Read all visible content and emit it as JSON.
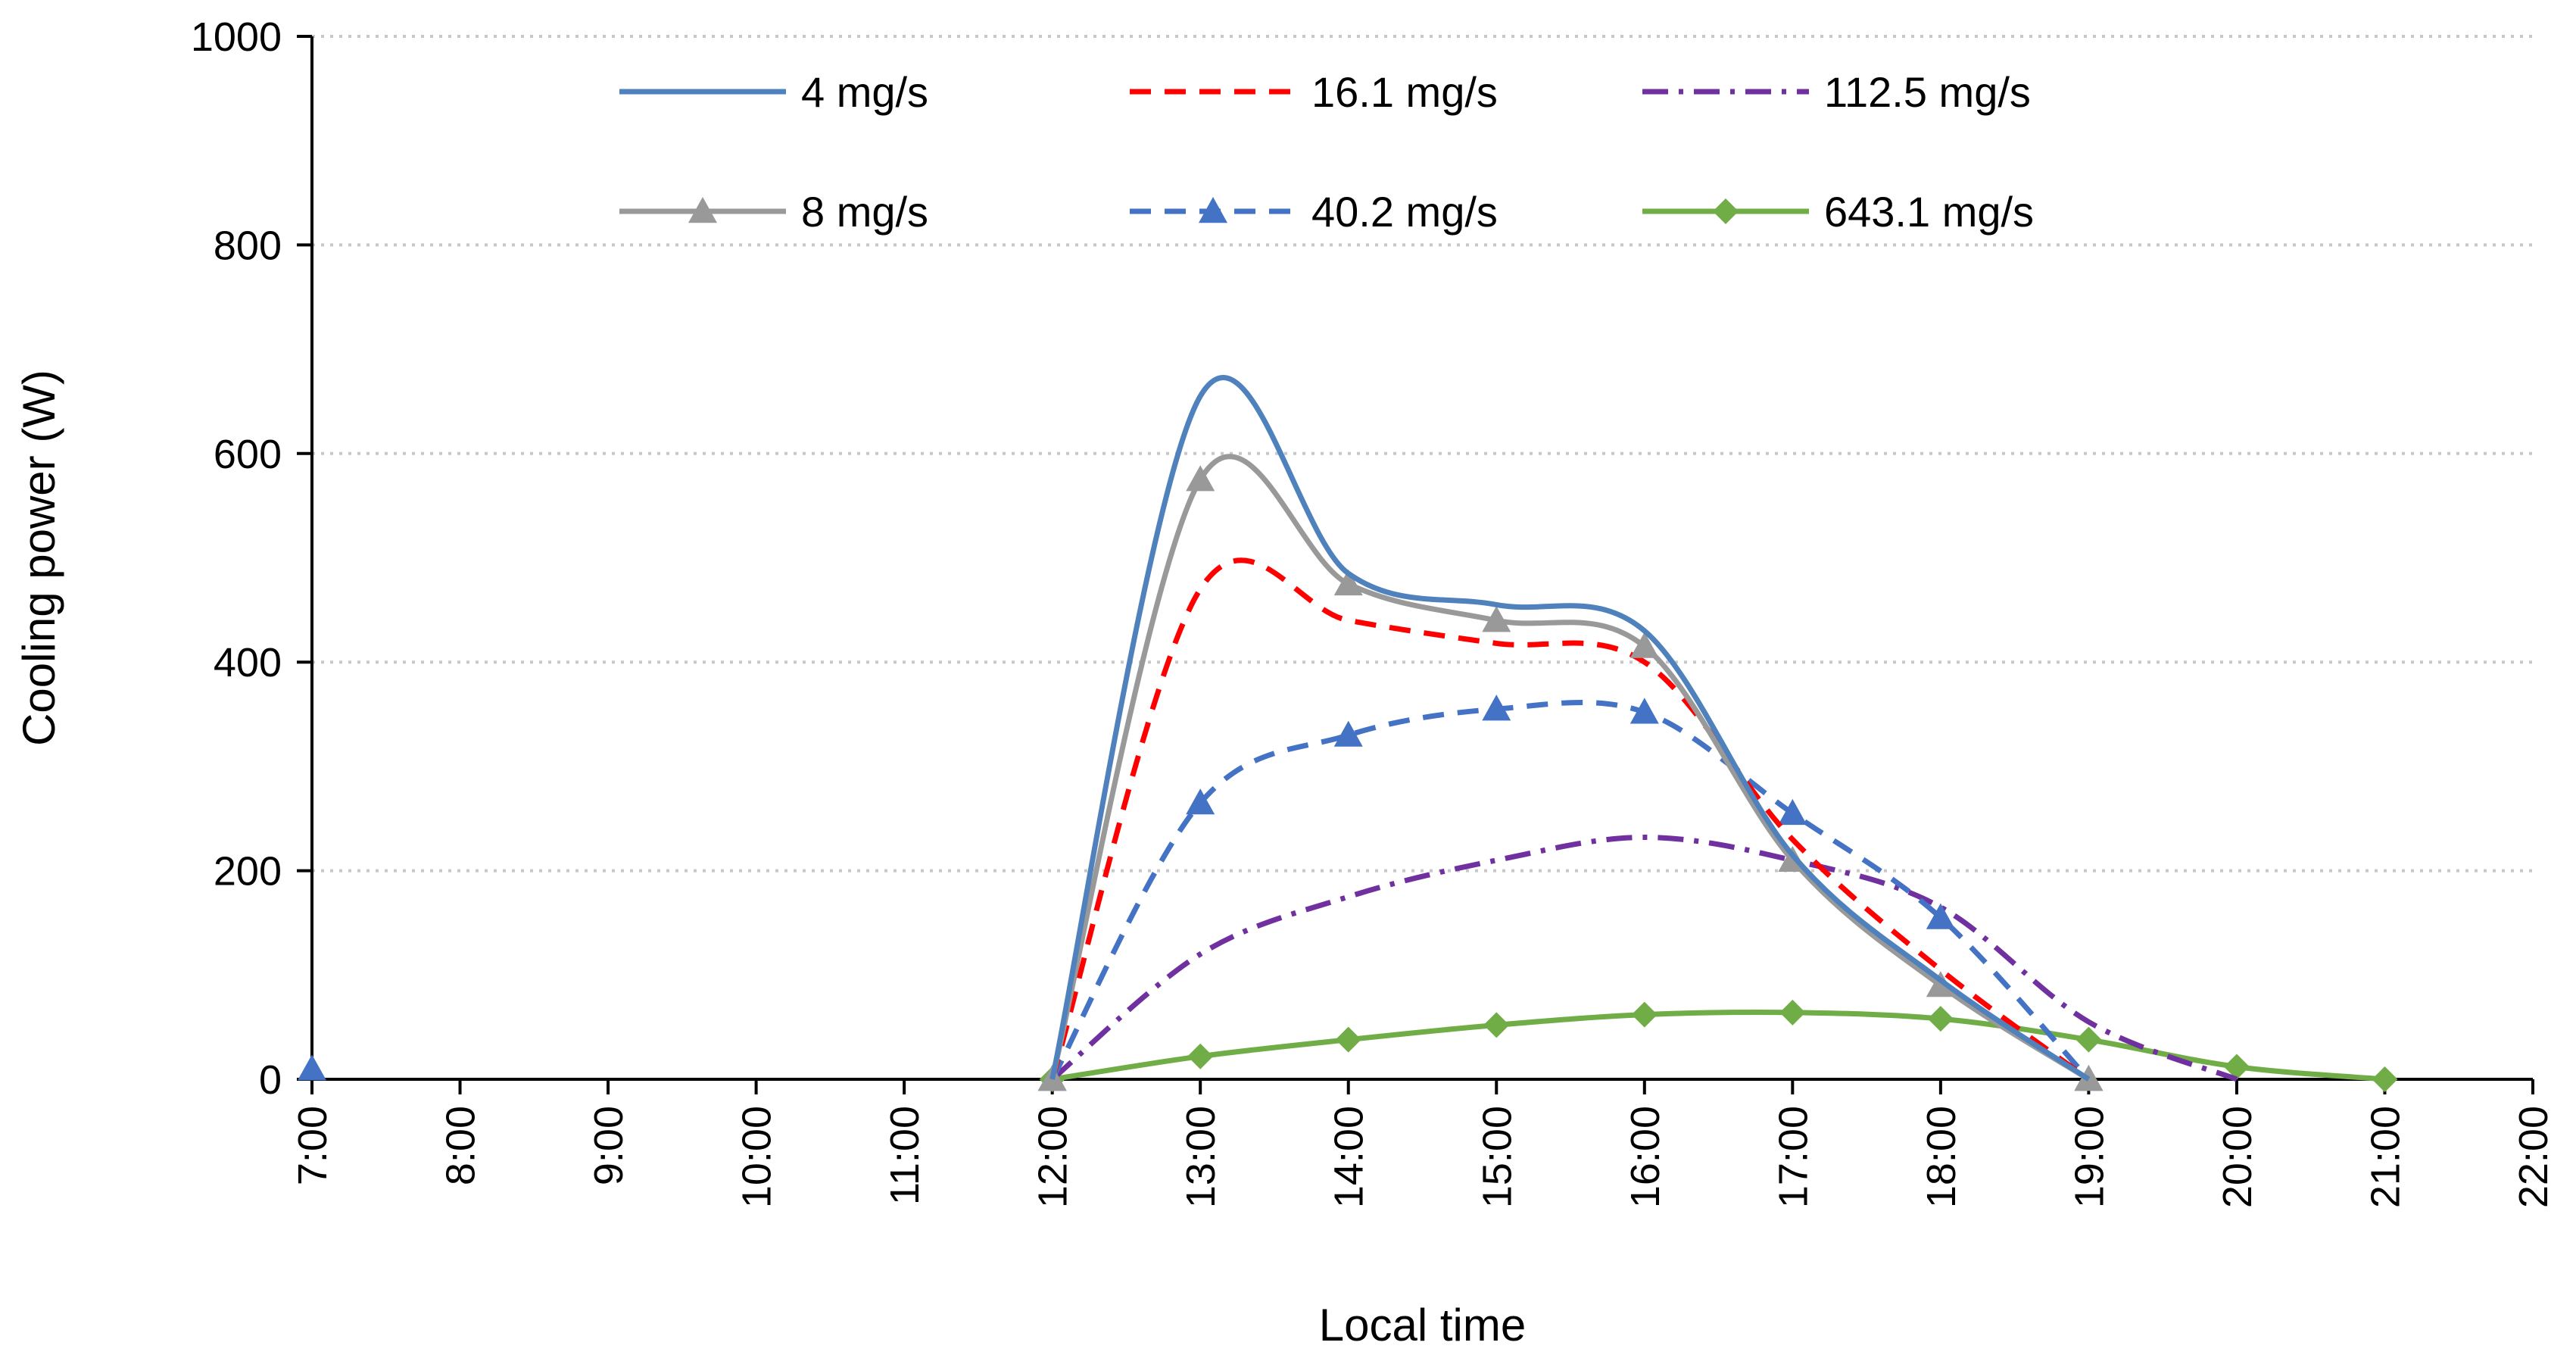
{
  "chart_data": {
    "type": "line",
    "title": "",
    "xlabel": "Local time",
    "ylabel": "Cooling power (W)",
    "xlim": [
      7,
      22
    ],
    "ylim": [
      0,
      1000
    ],
    "y_ticks": [
      0,
      200,
      400,
      600,
      800,
      1000
    ],
    "x_ticks": [
      7,
      8,
      9,
      10,
      11,
      12,
      13,
      14,
      15,
      16,
      17,
      18,
      19,
      20,
      21,
      22
    ],
    "x_tick_labels": [
      "7:00",
      "8:00",
      "9:00",
      "10:00",
      "11:00",
      "12:00",
      "13:00",
      "14:00",
      "15:00",
      "16:00",
      "17:00",
      "18:00",
      "19:00",
      "20:00",
      "21:00",
      "22:00"
    ],
    "grid": "horizontal dotted",
    "legend_position": "top, inside plot",
    "series": [
      {
        "name": "4 mg/s",
        "color": "#4f81bd",
        "dash": "solid",
        "marker": "none",
        "x": [
          12,
          13,
          14,
          15,
          16,
          17,
          18,
          19
        ],
        "y": [
          0,
          655,
          485,
          455,
          430,
          215,
          95,
          0
        ]
      },
      {
        "name": "8 mg/s",
        "color": "#999999",
        "dash": "solid",
        "marker": "triangle",
        "x": [
          12,
          13,
          14,
          15,
          16,
          17,
          18,
          19
        ],
        "y": [
          0,
          575,
          475,
          440,
          415,
          210,
          90,
          0
        ]
      },
      {
        "name": "16.1 mg/s",
        "color": "#ff0000",
        "dash": "dashed",
        "marker": "none",
        "x": [
          12,
          13,
          14,
          15,
          16,
          17,
          18,
          19
        ],
        "y": [
          0,
          470,
          440,
          418,
          400,
          230,
          105,
          0
        ]
      },
      {
        "name": "40.2 mg/s",
        "color": "#4472c4",
        "dash": "dashed",
        "marker": "triangle",
        "x": [
          7,
          12,
          13,
          14,
          15,
          16,
          17,
          18,
          19
        ],
        "y": [
          10,
          0,
          265,
          330,
          355,
          352,
          255,
          155,
          0
        ]
      },
      {
        "name": "112.5 mg/s",
        "color": "#7030a0",
        "dash": "dash-dot",
        "marker": "none",
        "x": [
          12,
          13,
          14,
          15,
          16,
          17,
          18,
          19,
          20
        ],
        "y": [
          0,
          120,
          175,
          210,
          232,
          210,
          165,
          55,
          0
        ]
      },
      {
        "name": "643.1 mg/s",
        "color": "#70ad47",
        "dash": "solid",
        "marker": "diamond",
        "x": [
          12,
          13,
          14,
          15,
          16,
          17,
          18,
          19,
          20,
          21
        ],
        "y": [
          0,
          22,
          38,
          52,
          62,
          64,
          58,
          38,
          12,
          0
        ]
      }
    ]
  }
}
